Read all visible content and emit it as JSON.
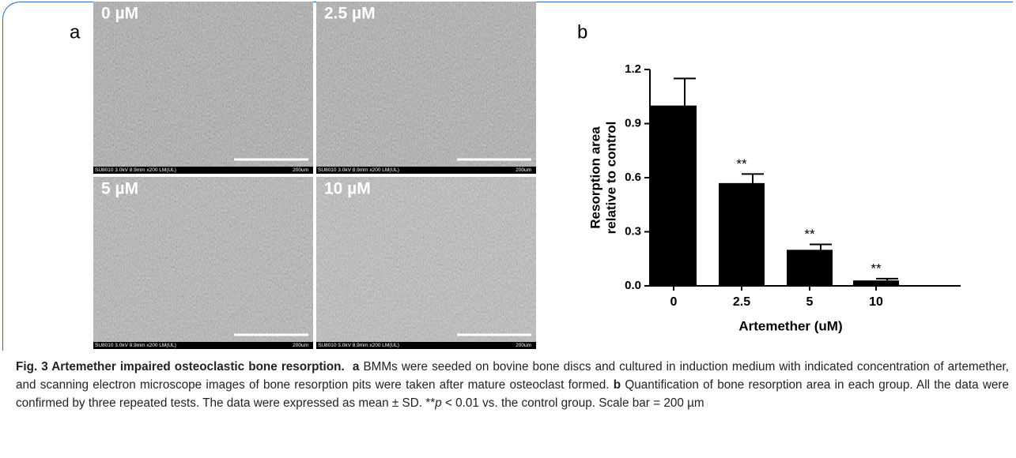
{
  "panel_labels": [
    "a",
    "b"
  ],
  "images": [
    {
      "label": "0 µM",
      "info": "SU8010 3.0kV 8.9mm x200 LM(UL)",
      "scale": "200um"
    },
    {
      "label": "2.5 µM",
      "info": "SU8010 3.0kV 8.9mm x200 LM(UL)",
      "scale": "200um"
    },
    {
      "label": "5 µM",
      "info": "SU8010 3.0kV 8.9mm x200 LM(UL)",
      "scale": "200um"
    },
    {
      "label": "10 µM",
      "info": "SU8010 3.0kV 8.9mm x200 LM(UL)",
      "scale": "200um"
    }
  ],
  "chart_data": {
    "type": "bar",
    "ylabel": [
      "Resorption area",
      "relative to control"
    ],
    "xlabel": "Artemether (uM)",
    "categories": [
      "0",
      "2.5",
      "5",
      "10"
    ],
    "values": [
      1.0,
      0.57,
      0.2,
      0.03
    ],
    "errors": [
      0.15,
      0.05,
      0.03,
      0.01
    ],
    "significance": [
      null,
      "**",
      "**",
      "**"
    ],
    "color": "#000000",
    "ylim": [
      0,
      1.2
    ],
    "yticks": [
      {
        "value": 0,
        "label": "0.0"
      },
      {
        "value": 0.3,
        "label": "0.3"
      },
      {
        "value": 0.6,
        "label": "0.6"
      },
      {
        "value": 0.9,
        "label": "0.9"
      },
      {
        "value": 1.2,
        "label": "1.2"
      }
    ]
  },
  "caption": {
    "title": "Fig. 3 Artemether impaired osteoclastic bone resorption.",
    "a_label": "a",
    "a_text": "BMMs were seeded on bovine bone discs and cultured in induction medium with indicated concentration of artemether, and scanning electron microscope images of bone resorption pits were taken after mature osteoclast formed.",
    "b_label": "b",
    "b_text": "Quantification of bone resorption area in each group. All the data were confirmed by three repeated tests. The data were expressed as mean ± SD.",
    "note_stars": "**",
    "note_p": "p",
    "note_rest": "< 0.01 vs. the control group. Scale bar = 200 µm"
  }
}
